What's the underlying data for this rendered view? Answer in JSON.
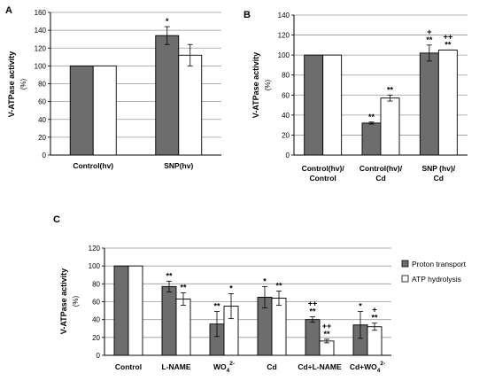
{
  "chart_data": [
    {
      "panel": "A",
      "type": "bar",
      "ylabel": "V-ATPase activity",
      "yunit": "(%)",
      "ylim": [
        0,
        160
      ],
      "ticks": [
        0,
        20,
        40,
        60,
        80,
        100,
        120,
        140,
        160
      ],
      "grid": "horizontal",
      "categories": [
        "Control(hv)",
        "SNP(hv)"
      ],
      "series": [
        {
          "name": "Proton transport",
          "color": "#6d6d6d",
          "values": [
            100,
            134
          ],
          "errors": [
            0,
            10
          ]
        },
        {
          "name": "ATP hydrolysis",
          "color": "#ffffff",
          "values": [
            100,
            112
          ],
          "errors": [
            0,
            12
          ]
        }
      ],
      "annotations": [
        {
          "category": 1,
          "series": 0,
          "text": "*"
        }
      ]
    },
    {
      "panel": "B",
      "type": "bar",
      "ylabel": "V-ATPase activity",
      "yunit": "(%)",
      "ylim": [
        0,
        140
      ],
      "ticks": [
        0,
        20,
        40,
        60,
        80,
        100,
        120,
        140
      ],
      "grid": "horizontal",
      "categories": [
        [
          "Control(hv)/",
          "Control"
        ],
        [
          "Control(hv)/",
          "Cd"
        ],
        [
          "SNP (hv)/",
          "Cd"
        ]
      ],
      "series": [
        {
          "name": "Proton transport",
          "color": "#6d6d6d",
          "values": [
            100,
            32,
            102
          ],
          "errors": [
            0,
            1,
            8
          ]
        },
        {
          "name": "ATP hydrolysis",
          "color": "#ffffff",
          "values": [
            100,
            57,
            105
          ],
          "errors": [
            0,
            3,
            0
          ]
        }
      ],
      "annotations": [
        {
          "category": 1,
          "series": 0,
          "text": "**"
        },
        {
          "category": 1,
          "series": 1,
          "text": "**"
        },
        {
          "category": 2,
          "series": 0,
          "text": "+"
        },
        {
          "category": 2,
          "series": 0,
          "text": "**"
        },
        {
          "category": 2,
          "series": 1,
          "text": "++"
        },
        {
          "category": 2,
          "series": 1,
          "text": "**"
        }
      ]
    },
    {
      "panel": "C",
      "type": "bar",
      "ylabel": "V-ATPase activity",
      "yunit": "(%)",
      "ylim": [
        0,
        120
      ],
      "ticks": [
        0,
        20,
        40,
        60,
        80,
        100,
        120
      ],
      "grid": "horizontal",
      "categories": [
        "Control",
        "L-NAME",
        "WO4 2-",
        "Cd",
        "Cd+L-NAME",
        "Cd+WO4 2-"
      ],
      "series": [
        {
          "name": "Proton transport",
          "color": "#6d6d6d",
          "values": [
            100,
            77,
            35,
            65,
            40,
            34
          ],
          "errors": [
            0,
            6,
            14,
            12,
            3,
            15
          ]
        },
        {
          "name": "ATP hydrolysis",
          "color": "#ffffff",
          "values": [
            100,
            63,
            55,
            64,
            16,
            32
          ],
          "errors": [
            0,
            7,
            14,
            8,
            2,
            4
          ]
        }
      ],
      "annotations": [
        {
          "category": 1,
          "series": 0,
          "text": "**"
        },
        {
          "category": 1,
          "series": 1,
          "text": "**"
        },
        {
          "category": 2,
          "series": 0,
          "text": "**"
        },
        {
          "category": 2,
          "series": 1,
          "text": "*"
        },
        {
          "category": 3,
          "series": 0,
          "text": "*"
        },
        {
          "category": 3,
          "series": 1,
          "text": "**"
        },
        {
          "category": 4,
          "series": 0,
          "text": "++"
        },
        {
          "category": 4,
          "series": 0,
          "text": "**"
        },
        {
          "category": 4,
          "series": 1,
          "text": "++"
        },
        {
          "category": 4,
          "series": 1,
          "text": "**"
        },
        {
          "category": 5,
          "series": 0,
          "text": "*"
        },
        {
          "category": 5,
          "series": 1,
          "text": "+"
        },
        {
          "category": 5,
          "series": 1,
          "text": "**"
        }
      ],
      "legend": {
        "position": "right",
        "entries": [
          {
            "label": "Proton transport",
            "color": "#6d6d6d"
          },
          {
            "label": "ATP hydrolysis",
            "color": "#ffffff"
          }
        ]
      }
    }
  ]
}
